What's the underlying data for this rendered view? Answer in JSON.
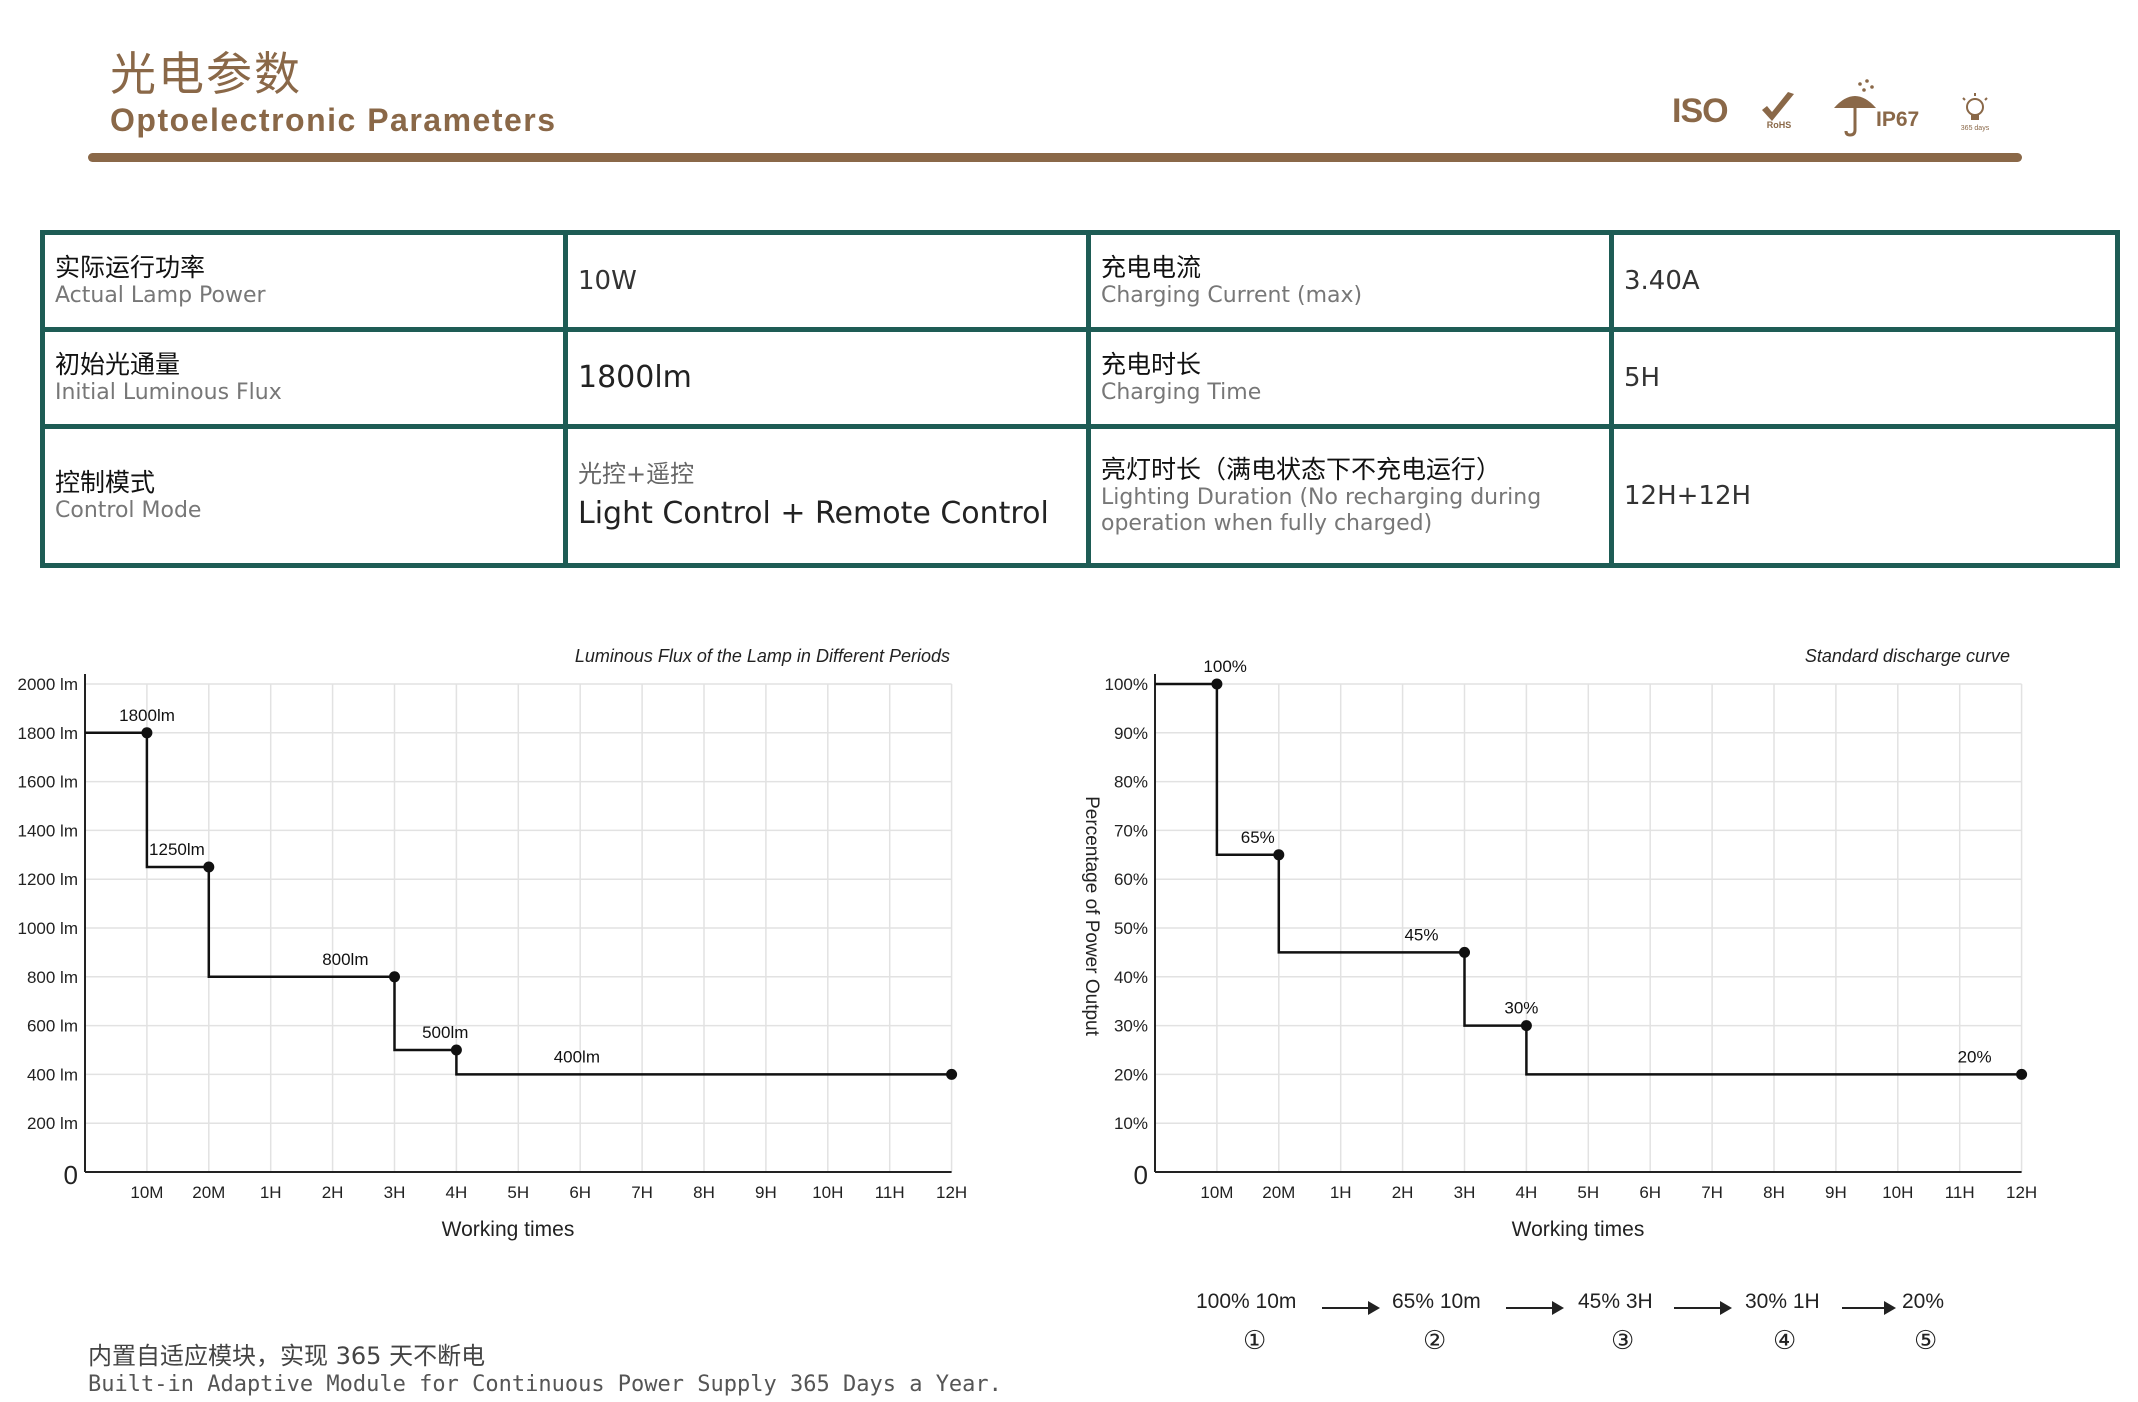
{
  "header": {
    "title_cn": "光电参数",
    "title_en": "Optoelectronic Parameters",
    "cert_icons": [
      "iso-logo",
      "rohs-check-icon",
      "umbrella-rain-icon",
      "bulb-365-icon"
    ],
    "iso_label": "ISO",
    "rohs_label": "RoHS",
    "ip_label": "IP67",
    "days_label": "365 days",
    "accent_color": "#8a6848",
    "table_border_color": "#1e5c55"
  },
  "params": [
    [
      {
        "cn": "实际运行功率",
        "en": "Actual Lamp Power",
        "value": "10W"
      },
      {
        "cn": "充电电流",
        "en": "Charging Current (max)",
        "value": "3.40A"
      }
    ],
    [
      {
        "cn": "初始光通量",
        "en": "Initial Luminous Flux",
        "value": "1800lm"
      },
      {
        "cn": "充电时长",
        "en": "Charging Time",
        "value": "5H"
      }
    ],
    [
      {
        "cn": "控制模式",
        "en": "Control Mode",
        "value_cn": "光控+遥控",
        "value": "Light Control + Remote Control"
      },
      {
        "cn": "亮灯时长（满电状态下不充电运行）",
        "en": "Lighting Duration (No recharging during operation when fully charged)",
        "value": "12H+12H"
      }
    ]
  ],
  "chart_data": [
    {
      "type": "line",
      "step": true,
      "title": "Luminous Flux of the Lamp in Different Periods",
      "xlabel": "Working times",
      "ylabel": "",
      "categories": [
        "0",
        "10M",
        "20M",
        "1H",
        "2H",
        "3H",
        "4H",
        "5H",
        "6H",
        "7H",
        "8H",
        "9H",
        "10H",
        "11H",
        "12H"
      ],
      "y_ticks": [
        "0",
        "200 lm",
        "400 lm",
        "600 lm",
        "800 lm",
        "1000 lm",
        "1200 lm",
        "1400 lm",
        "1600 lm",
        "1800 lm",
        "2000 lm"
      ],
      "ylim": [
        0,
        2000
      ],
      "grid": true,
      "points": [
        {
          "x": "10M",
          "y": 1800,
          "label": "1800lm"
        },
        {
          "x": "20M",
          "y": 1250,
          "label": "1250lm"
        },
        {
          "x": "3H",
          "y": 800,
          "label": "800lm"
        },
        {
          "x": "4H",
          "y": 500,
          "label": "500lm"
        },
        {
          "x": "12H",
          "y": 400,
          "label": "400lm"
        }
      ]
    },
    {
      "type": "line",
      "step": true,
      "title": "Standard discharge curve",
      "xlabel": "Working times",
      "ylabel": "Percentage of Power Output",
      "categories": [
        "0",
        "10M",
        "20M",
        "1H",
        "2H",
        "3H",
        "4H",
        "5H",
        "6H",
        "7H",
        "8H",
        "9H",
        "10H",
        "11H",
        "12H"
      ],
      "y_ticks": [
        "0",
        "10%",
        "20%",
        "30%",
        "40%",
        "50%",
        "60%",
        "70%",
        "80%",
        "90%",
        "100%"
      ],
      "ylim": [
        0,
        100
      ],
      "grid": true,
      "points": [
        {
          "x": "10M",
          "y": 100,
          "label": "100%"
        },
        {
          "x": "20M",
          "y": 65,
          "label": "65%"
        },
        {
          "x": "3H",
          "y": 45,
          "label": "45%"
        },
        {
          "x": "4H",
          "y": 30,
          "label": "30%"
        },
        {
          "x": "12H",
          "y": 20,
          "label": "20%"
        }
      ]
    }
  ],
  "sequence": [
    {
      "text": "100%  10m",
      "num": "①"
    },
    {
      "text": "65%  10m",
      "num": "②"
    },
    {
      "text": "45%  3H",
      "num": "③"
    },
    {
      "text": "30%  1H",
      "num": "④"
    },
    {
      "text": "20%",
      "num": "⑤"
    }
  ],
  "footer": {
    "cn": "内置自适应模块，实现 365 天不断电",
    "en": "Built-in Adaptive Module for Continuous Power Supply 365 Days a Year."
  }
}
